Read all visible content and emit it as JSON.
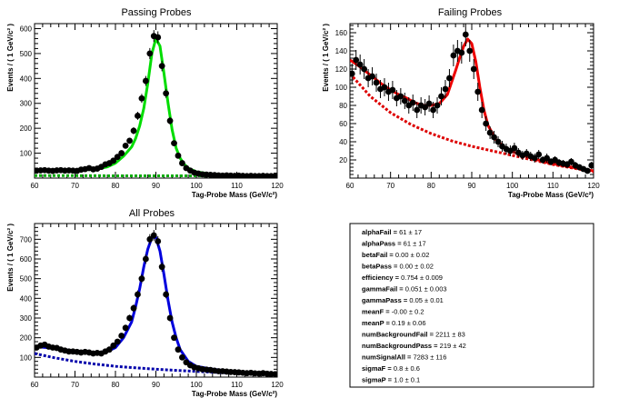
{
  "chart_data": [
    {
      "type": "scatter",
      "title": "Passing Probes",
      "xlabel": "Tag-Probe Mass (GeV/c²)",
      "ylabel": "Events / ( 1 GeV/c² )",
      "xlim": [
        60,
        120
      ],
      "ylim": [
        0,
        620
      ],
      "xticks": [
        60,
        70,
        80,
        90,
        100,
        110,
        120
      ],
      "yticks": [
        100,
        200,
        300,
        400,
        500,
        600
      ],
      "tick_labels_x": [
        "60",
        "70",
        "80",
        "90",
        "100",
        "110",
        "120"
      ],
      "tick_labels_y": [
        "100",
        "200",
        "300",
        "400",
        "500",
        "600"
      ],
      "grid": false,
      "colors": {
        "fit": "#00dd00",
        "background": "#00aa00",
        "points": "#000000"
      },
      "series": [
        {
          "kind": "points",
          "x": [
            60.5,
            61.5,
            62.5,
            63.5,
            64.5,
            65.5,
            66.5,
            67.5,
            68.5,
            69.5,
            70.5,
            71.5,
            72.5,
            73.5,
            74.5,
            75.5,
            76.5,
            77.5,
            78.5,
            79.5,
            80.5,
            81.5,
            82.5,
            83.5,
            84.5,
            85.5,
            86.5,
            87.5,
            88.5,
            89.5,
            90.5,
            91.5,
            92.5,
            93.5,
            94.5,
            95.5,
            96.5,
            97.5,
            98.5,
            99.5,
            100.5,
            101.5,
            102.5,
            103.5,
            104.5,
            105.5,
            106.5,
            107.5,
            108.5,
            109.5,
            110.5,
            111.5,
            112.5,
            113.5,
            114.5,
            115.5,
            116.5,
            117.5,
            118.5,
            119.5
          ],
          "y": [
            30,
            31,
            32,
            30,
            29,
            31,
            32,
            30,
            31,
            30,
            29,
            34,
            36,
            40,
            35,
            38,
            45,
            55,
            60,
            70,
            85,
            100,
            130,
            150,
            190,
            250,
            320,
            390,
            500,
            570,
            565,
            450,
            340,
            230,
            140,
            90,
            60,
            40,
            30,
            22,
            18,
            15,
            14,
            13,
            12,
            11,
            10,
            11,
            10,
            9,
            10,
            9,
            8,
            9,
            8,
            8,
            9,
            8,
            8,
            8
          ],
          "yerr": [
            5,
            5,
            5,
            5,
            5,
            5,
            5,
            5,
            5,
            5,
            5,
            6,
            6,
            6,
            6,
            6,
            7,
            7,
            8,
            8,
            9,
            10,
            11,
            12,
            14,
            16,
            18,
            20,
            22,
            24,
            24,
            21,
            18,
            15,
            12,
            9,
            8,
            6,
            5,
            5,
            4,
            4,
            4,
            4,
            3,
            3,
            3,
            3,
            3,
            3,
            3,
            3,
            3,
            3,
            3,
            3,
            3,
            3,
            3,
            3
          ]
        },
        {
          "kind": "fit",
          "style": "solid",
          "x": [
            60,
            65,
            70,
            75,
            78,
            80,
            82,
            84,
            85,
            86,
            87,
            88,
            89,
            90,
            91,
            92,
            93,
            94,
            95,
            96,
            97,
            98,
            100,
            103,
            106,
            110,
            115,
            120
          ],
          "y": [
            30,
            31,
            32,
            35,
            45,
            60,
            88,
            125,
            160,
            210,
            280,
            380,
            500,
            560,
            530,
            420,
            300,
            195,
            120,
            80,
            55,
            40,
            25,
            18,
            14,
            11,
            9,
            8
          ]
        },
        {
          "kind": "background",
          "style": "dashed",
          "x": [
            60,
            70,
            80,
            90,
            100,
            110,
            120
          ],
          "y": [
            10,
            10,
            9,
            9,
            9,
            8,
            8
          ]
        }
      ]
    },
    {
      "type": "scatter",
      "title": "Failing Probes",
      "xlabel": "Tag-Probe Mass (GeV/c²)",
      "ylabel": "Events / ( 1 GeV/c² )",
      "xlim": [
        60,
        120
      ],
      "ylim": [
        0,
        170
      ],
      "xticks": [
        60,
        70,
        80,
        90,
        100,
        110,
        120
      ],
      "yticks": [
        20,
        40,
        60,
        80,
        100,
        120,
        140,
        160
      ],
      "tick_labels_x": [
        "60",
        "70",
        "80",
        "90",
        "100",
        "110",
        "120"
      ],
      "tick_labels_y": [
        "20",
        "40",
        "60",
        "80",
        "100",
        "120",
        "140",
        "160"
      ],
      "grid": false,
      "colors": {
        "fit": "#ee0000",
        "background": "#dd0000",
        "points": "#000000"
      },
      "series": [
        {
          "kind": "points",
          "x": [
            60.5,
            61.5,
            62.5,
            63.5,
            64.5,
            65.5,
            66.5,
            67.5,
            68.5,
            69.5,
            70.5,
            71.5,
            72.5,
            73.5,
            74.5,
            75.5,
            76.5,
            77.5,
            78.5,
            79.5,
            80.5,
            81.5,
            82.5,
            83.5,
            84.5,
            85.5,
            86.5,
            87.5,
            88.5,
            89.5,
            90.5,
            91.5,
            92.5,
            93.5,
            94.5,
            95.5,
            96.5,
            97.5,
            98.5,
            99.5,
            100.5,
            101.5,
            102.5,
            103.5,
            104.5,
            105.5,
            106.5,
            107.5,
            108.5,
            109.5,
            110.5,
            111.5,
            112.5,
            113.5,
            114.5,
            115.5,
            116.5,
            117.5,
            118.5,
            119.5
          ],
          "y": [
            115,
            130,
            125,
            120,
            110,
            112,
            105,
            98,
            100,
            95,
            97,
            88,
            90,
            85,
            80,
            83,
            75,
            80,
            78,
            82,
            75,
            80,
            90,
            98,
            110,
            135,
            140,
            138,
            158,
            140,
            120,
            95,
            75,
            60,
            50,
            45,
            40,
            35,
            32,
            30,
            33,
            28,
            25,
            27,
            24,
            22,
            26,
            20,
            22,
            18,
            20,
            17,
            16,
            15,
            18,
            14,
            12,
            10,
            8,
            14
          ],
          "yerr": [
            11,
            11,
            11,
            11,
            10,
            10,
            10,
            10,
            10,
            10,
            10,
            9,
            9,
            9,
            9,
            9,
            9,
            9,
            9,
            9,
            9,
            9,
            10,
            10,
            10,
            12,
            12,
            12,
            13,
            12,
            11,
            10,
            9,
            8,
            7,
            7,
            6,
            6,
            6,
            6,
            6,
            5,
            5,
            5,
            5,
            5,
            5,
            4,
            5,
            4,
            4,
            4,
            4,
            4,
            4,
            4,
            3,
            3,
            3,
            4
          ]
        },
        {
          "kind": "fit",
          "style": "solid",
          "x": [
            60,
            62,
            64,
            66,
            68,
            70,
            72,
            74,
            76,
            78,
            80,
            82,
            84,
            86,
            87,
            88,
            89,
            90,
            91,
            92,
            93,
            94,
            96,
            98,
            100,
            104,
            108,
            112,
            116,
            120
          ],
          "y": [
            130,
            124,
            117,
            110,
            103,
            97,
            92,
            88,
            83,
            80,
            80,
            82,
            92,
            118,
            132,
            145,
            153,
            148,
            128,
            100,
            75,
            58,
            42,
            34,
            29,
            23,
            18,
            14,
            11,
            8
          ]
        },
        {
          "kind": "background",
          "style": "dashed",
          "x": [
            60,
            65,
            70,
            75,
            80,
            85,
            90,
            95,
            100,
            105,
            110,
            115,
            120
          ],
          "y": [
            115,
            90,
            72,
            59,
            49,
            41,
            35,
            30,
            25,
            20,
            15,
            11,
            7
          ]
        }
      ]
    },
    {
      "type": "scatter",
      "title": "All Probes",
      "xlabel": "Tag-Probe Mass (GeV/c²)",
      "ylabel": "Events / ( 1 GeV/c² )",
      "xlim": [
        60,
        120
      ],
      "ylim": [
        0,
        780
      ],
      "xticks": [
        60,
        70,
        80,
        90,
        100,
        110,
        120
      ],
      "yticks": [
        100,
        200,
        300,
        400,
        500,
        600,
        700
      ],
      "tick_labels_x": [
        "60",
        "70",
        "80",
        "90",
        "100",
        "110",
        "120"
      ],
      "tick_labels_y": [
        "100",
        "200",
        "300",
        "400",
        "500",
        "600",
        "700"
      ],
      "grid": false,
      "colors": {
        "fit": "#0000dd",
        "background": "#0000aa",
        "points": "#000000"
      },
      "series": [
        {
          "kind": "points",
          "x": [
            60.5,
            61.5,
            62.5,
            63.5,
            64.5,
            65.5,
            66.5,
            67.5,
            68.5,
            69.5,
            70.5,
            71.5,
            72.5,
            73.5,
            74.5,
            75.5,
            76.5,
            77.5,
            78.5,
            79.5,
            80.5,
            81.5,
            82.5,
            83.5,
            84.5,
            85.5,
            86.5,
            87.5,
            88.5,
            89.5,
            90.5,
            91.5,
            92.5,
            93.5,
            94.5,
            95.5,
            96.5,
            97.5,
            98.5,
            99.5,
            100.5,
            101.5,
            102.5,
            103.5,
            104.5,
            105.5,
            106.5,
            107.5,
            108.5,
            109.5,
            110.5,
            111.5,
            112.5,
            113.5,
            114.5,
            115.5,
            116.5,
            117.5,
            118.5,
            119.5
          ],
          "y": [
            150,
            160,
            165,
            155,
            150,
            148,
            140,
            135,
            130,
            130,
            128,
            125,
            128,
            125,
            120,
            123,
            120,
            130,
            140,
            160,
            180,
            210,
            250,
            300,
            350,
            420,
            500,
            600,
            700,
            720,
            690,
            560,
            420,
            300,
            200,
            140,
            100,
            75,
            60,
            50,
            45,
            40,
            38,
            36,
            33,
            30,
            30,
            28,
            26,
            25,
            24,
            22,
            20,
            22,
            19,
            18,
            20,
            17,
            16,
            15
          ],
          "yerr": [
            12,
            13,
            13,
            12,
            12,
            12,
            12,
            12,
            11,
            11,
            11,
            11,
            11,
            11,
            11,
            11,
            11,
            11,
            12,
            13,
            13,
            14,
            16,
            17,
            19,
            20,
            22,
            24,
            26,
            27,
            26,
            24,
            20,
            17,
            14,
            12,
            10,
            9,
            8,
            7,
            7,
            6,
            6,
            6,
            6,
            5,
            5,
            5,
            5,
            5,
            5,
            5,
            4,
            5,
            4,
            4,
            4,
            4,
            4,
            4
          ]
        },
        {
          "kind": "fit",
          "style": "solid",
          "x": [
            60,
            63,
            66,
            69,
            72,
            75,
            78,
            80,
            82,
            84,
            85,
            86,
            87,
            88,
            89,
            90,
            91,
            92,
            93,
            94,
            95,
            96,
            98,
            100,
            104,
            108,
            112,
            116,
            120
          ],
          "y": [
            155,
            150,
            142,
            135,
            128,
            124,
            130,
            150,
            200,
            280,
            360,
            450,
            560,
            650,
            710,
            710,
            640,
            520,
            390,
            280,
            200,
            140,
            80,
            55,
            40,
            30,
            24,
            18,
            14
          ]
        },
        {
          "kind": "background",
          "style": "dashed",
          "x": [
            60,
            65,
            70,
            75,
            80,
            85,
            90,
            95,
            100,
            105,
            110,
            115,
            120
          ],
          "y": [
            120,
            98,
            80,
            66,
            55,
            47,
            40,
            34,
            29,
            24,
            19,
            15,
            11
          ]
        }
      ]
    }
  ],
  "parameters": [
    {
      "label": "alphaFail = ",
      "value": "61 ± 17"
    },
    {
      "label": "alphaPass = ",
      "value": "61 ± 17"
    },
    {
      "label": "betaFail = ",
      "value": "0.00 ± 0.02"
    },
    {
      "label": "betaPass = ",
      "value": "0.00 ± 0.02"
    },
    {
      "label": "efficiency = ",
      "value": "0.754 ± 0.009"
    },
    {
      "label": "gammaFail = ",
      "value": "0.051 ± 0.003"
    },
    {
      "label": "gammaPass = ",
      "value": "0.05 ± 0.01"
    },
    {
      "label": "meanF = ",
      "value": "-0.00 ± 0.2"
    },
    {
      "label": "meanP = ",
      "value": "0.19 ± 0.06"
    },
    {
      "label": "numBackgroundFail = ",
      "value": "2211 ± 83"
    },
    {
      "label": "numBackgroundPass = ",
      "value": "219 ± 42"
    },
    {
      "label": "numSignalAll = ",
      "value": "7283 ± 116"
    },
    {
      "label": "sigmaF = ",
      "value": "0.8 ± 0.6"
    },
    {
      "label": "sigmaP = ",
      "value": "1.0 ± 0.1"
    }
  ]
}
